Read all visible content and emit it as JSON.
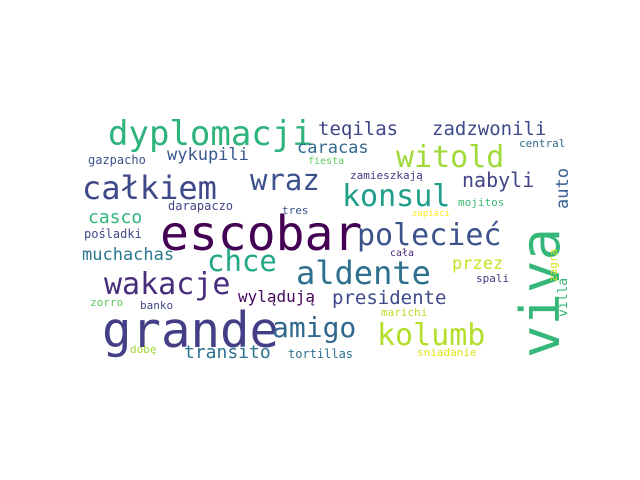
{
  "words": [
    {
      "text": "escobar",
      "color": "#440154"
    },
    {
      "text": "grande",
      "color": "#433e85"
    },
    {
      "text": "viva",
      "color": "#35b779"
    },
    {
      "text": "dyplomacji",
      "color": "#2eb37c"
    },
    {
      "text": "całkiem",
      "color": "#3e4989"
    },
    {
      "text": "aldente",
      "color": "#2d708e"
    },
    {
      "text": "polecieć",
      "color": "#3b528b"
    },
    {
      "text": "wakacje",
      "color": "#472d7b"
    },
    {
      "text": "witold",
      "color": "#a0da39"
    },
    {
      "text": "kolumb",
      "color": "#b5de2b"
    },
    {
      "text": "konsul",
      "color": "#1f9e89"
    },
    {
      "text": "wraz",
      "color": "#3b528b"
    },
    {
      "text": "chce",
      "color": "#22a884"
    },
    {
      "text": "amigo",
      "color": "#31688e"
    },
    {
      "text": "presidente",
      "color": "#3e4989"
    },
    {
      "text": "nabyli",
      "color": "#414487"
    },
    {
      "text": "zadzwonili",
      "color": "#3e4a89"
    },
    {
      "text": "teqilas",
      "color": "#414487"
    },
    {
      "text": "transito",
      "color": "#2c728e"
    },
    {
      "text": "muchachas",
      "color": "#2a788e"
    },
    {
      "text": "wykupili",
      "color": "#38588c"
    },
    {
      "text": "caracas",
      "color": "#31688e"
    },
    {
      "text": "casco",
      "color": "#2fb47c"
    },
    {
      "text": "wylądują",
      "color": "#46085c"
    },
    {
      "text": "przez",
      "color": "#c8e020"
    },
    {
      "text": "auto",
      "color": "#355f8d"
    },
    {
      "text": "villa",
      "color": "#35b779"
    },
    {
      "text": "zagra",
      "color": "#d8e219"
    },
    {
      "text": "tortillas",
      "color": "#2c728e"
    },
    {
      "text": "gazpacho",
      "color": "#3b528b"
    },
    {
      "text": "zamieszkają",
      "color": "#453781"
    },
    {
      "text": "darapaczo",
      "color": "#414487"
    },
    {
      "text": "tres",
      "color": "#3b528b"
    },
    {
      "text": "pośladki",
      "color": "#3e4989"
    },
    {
      "text": "fiesta",
      "color": "#5ec962"
    },
    {
      "text": "mojitos",
      "color": "#3dbc74"
    },
    {
      "text": "central",
      "color": "#31688e"
    },
    {
      "text": "zapiaci",
      "color": "#fde725"
    },
    {
      "text": "cała",
      "color": "#472c7a"
    },
    {
      "text": "spali",
      "color": "#453781"
    },
    {
      "text": "zorro",
      "color": "#5ec962"
    },
    {
      "text": "banko",
      "color": "#414487"
    },
    {
      "text": "marichi",
      "color": "#b8de29"
    },
    {
      "text": "dobę",
      "color": "#a0da39"
    },
    {
      "text": "sniadanie",
      "color": "#dde318"
    }
  ]
}
